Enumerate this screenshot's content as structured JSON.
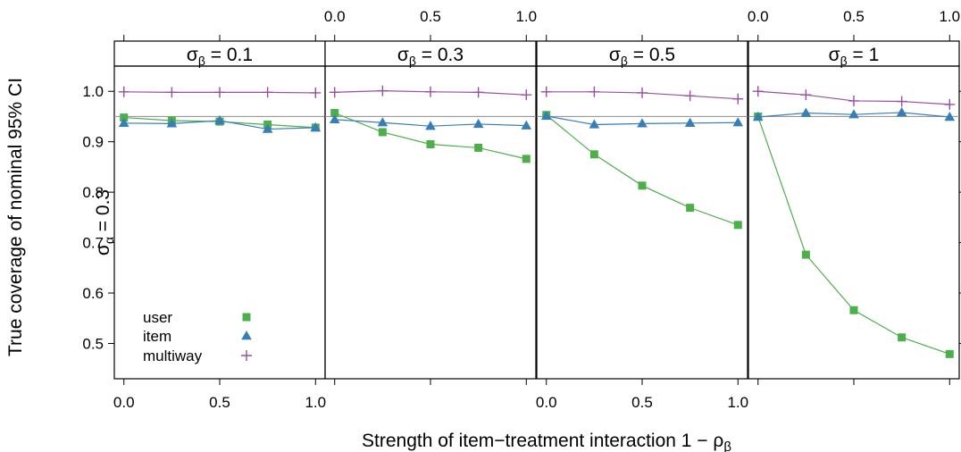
{
  "chart_data": {
    "type": "line",
    "ylabel": "True coverage of nominal 95% CI",
    "xlabel": "Strength of item−treatment interaction 1 − ρ",
    "xlabel_sub": "β",
    "row_strip": {
      "main": "σ",
      "sub": "α",
      "eq": " = 0.3"
    },
    "reference_line": 0.95,
    "ylim": [
      0.43,
      1.05
    ],
    "yticks": [
      0.5,
      0.6,
      0.7,
      0.8,
      0.9,
      1.0
    ],
    "ytick_labels": [
      "0.5",
      "0.6",
      "0.7",
      "0.8",
      "0.9",
      "1.0"
    ],
    "xlim": [
      -0.05,
      1.05
    ],
    "xticks": [
      0,
      0.5,
      1.0
    ],
    "xtick_labels": [
      "0.0",
      "0.5",
      "1.0"
    ],
    "x": [
      0,
      0.25,
      0.5,
      0.75,
      1.0
    ],
    "legend": {
      "placement": "bottom-left of first panel",
      "entries": [
        {
          "name": "user",
          "symbol": "square",
          "color": "#4daf4a"
        },
        {
          "name": "item",
          "symbol": "triangle",
          "color": "#377eb8"
        },
        {
          "name": "multiway",
          "symbol": "plus",
          "color": "#984ea3"
        }
      ]
    },
    "colors": {
      "user": "#4daf4a",
      "item": "#377eb8",
      "multiway": "#984ea3",
      "reference": "#999999"
    },
    "panels": [
      {
        "strip": {
          "main": "σ",
          "sub": "β",
          "eq": " = 0.1"
        },
        "series": [
          {
            "name": "user",
            "values": [
              0.948,
              0.942,
              0.94,
              0.934,
              0.928
            ]
          },
          {
            "name": "item",
            "values": [
              0.937,
              0.936,
              0.942,
              0.925,
              0.928
            ]
          },
          {
            "name": "multiway",
            "values": [
              0.999,
              0.998,
              0.998,
              0.998,
              0.997
            ]
          }
        ]
      },
      {
        "strip": {
          "main": "σ",
          "sub": "β",
          "eq": " = 0.3"
        },
        "series": [
          {
            "name": "user",
            "values": [
              0.957,
              0.919,
              0.895,
              0.888,
              0.866
            ]
          },
          {
            "name": "item",
            "values": [
              0.944,
              0.938,
              0.931,
              0.935,
              0.932
            ]
          },
          {
            "name": "multiway",
            "values": [
              0.998,
              1.001,
              0.999,
              0.998,
              0.993
            ]
          }
        ]
      },
      {
        "strip": {
          "main": "σ",
          "sub": "β",
          "eq": " = 0.5"
        },
        "series": [
          {
            "name": "user",
            "values": [
              0.953,
              0.875,
              0.813,
              0.769,
              0.735
            ]
          },
          {
            "name": "item",
            "values": [
              0.951,
              0.934,
              0.936,
              0.937,
              0.938
            ]
          },
          {
            "name": "multiway",
            "values": [
              0.999,
              0.999,
              0.997,
              0.991,
              0.985
            ]
          }
        ]
      },
      {
        "strip": {
          "main": "σ",
          "sub": "β",
          "eq": " = 1"
        },
        "series": [
          {
            "name": "user",
            "values": [
              0.95,
              0.676,
              0.566,
              0.512,
              0.479
            ]
          },
          {
            "name": "item",
            "values": [
              0.949,
              0.957,
              0.954,
              0.958,
              0.949
            ]
          },
          {
            "name": "multiway",
            "values": [
              1.0,
              0.993,
              0.981,
              0.98,
              0.974
            ]
          }
        ]
      }
    ]
  }
}
